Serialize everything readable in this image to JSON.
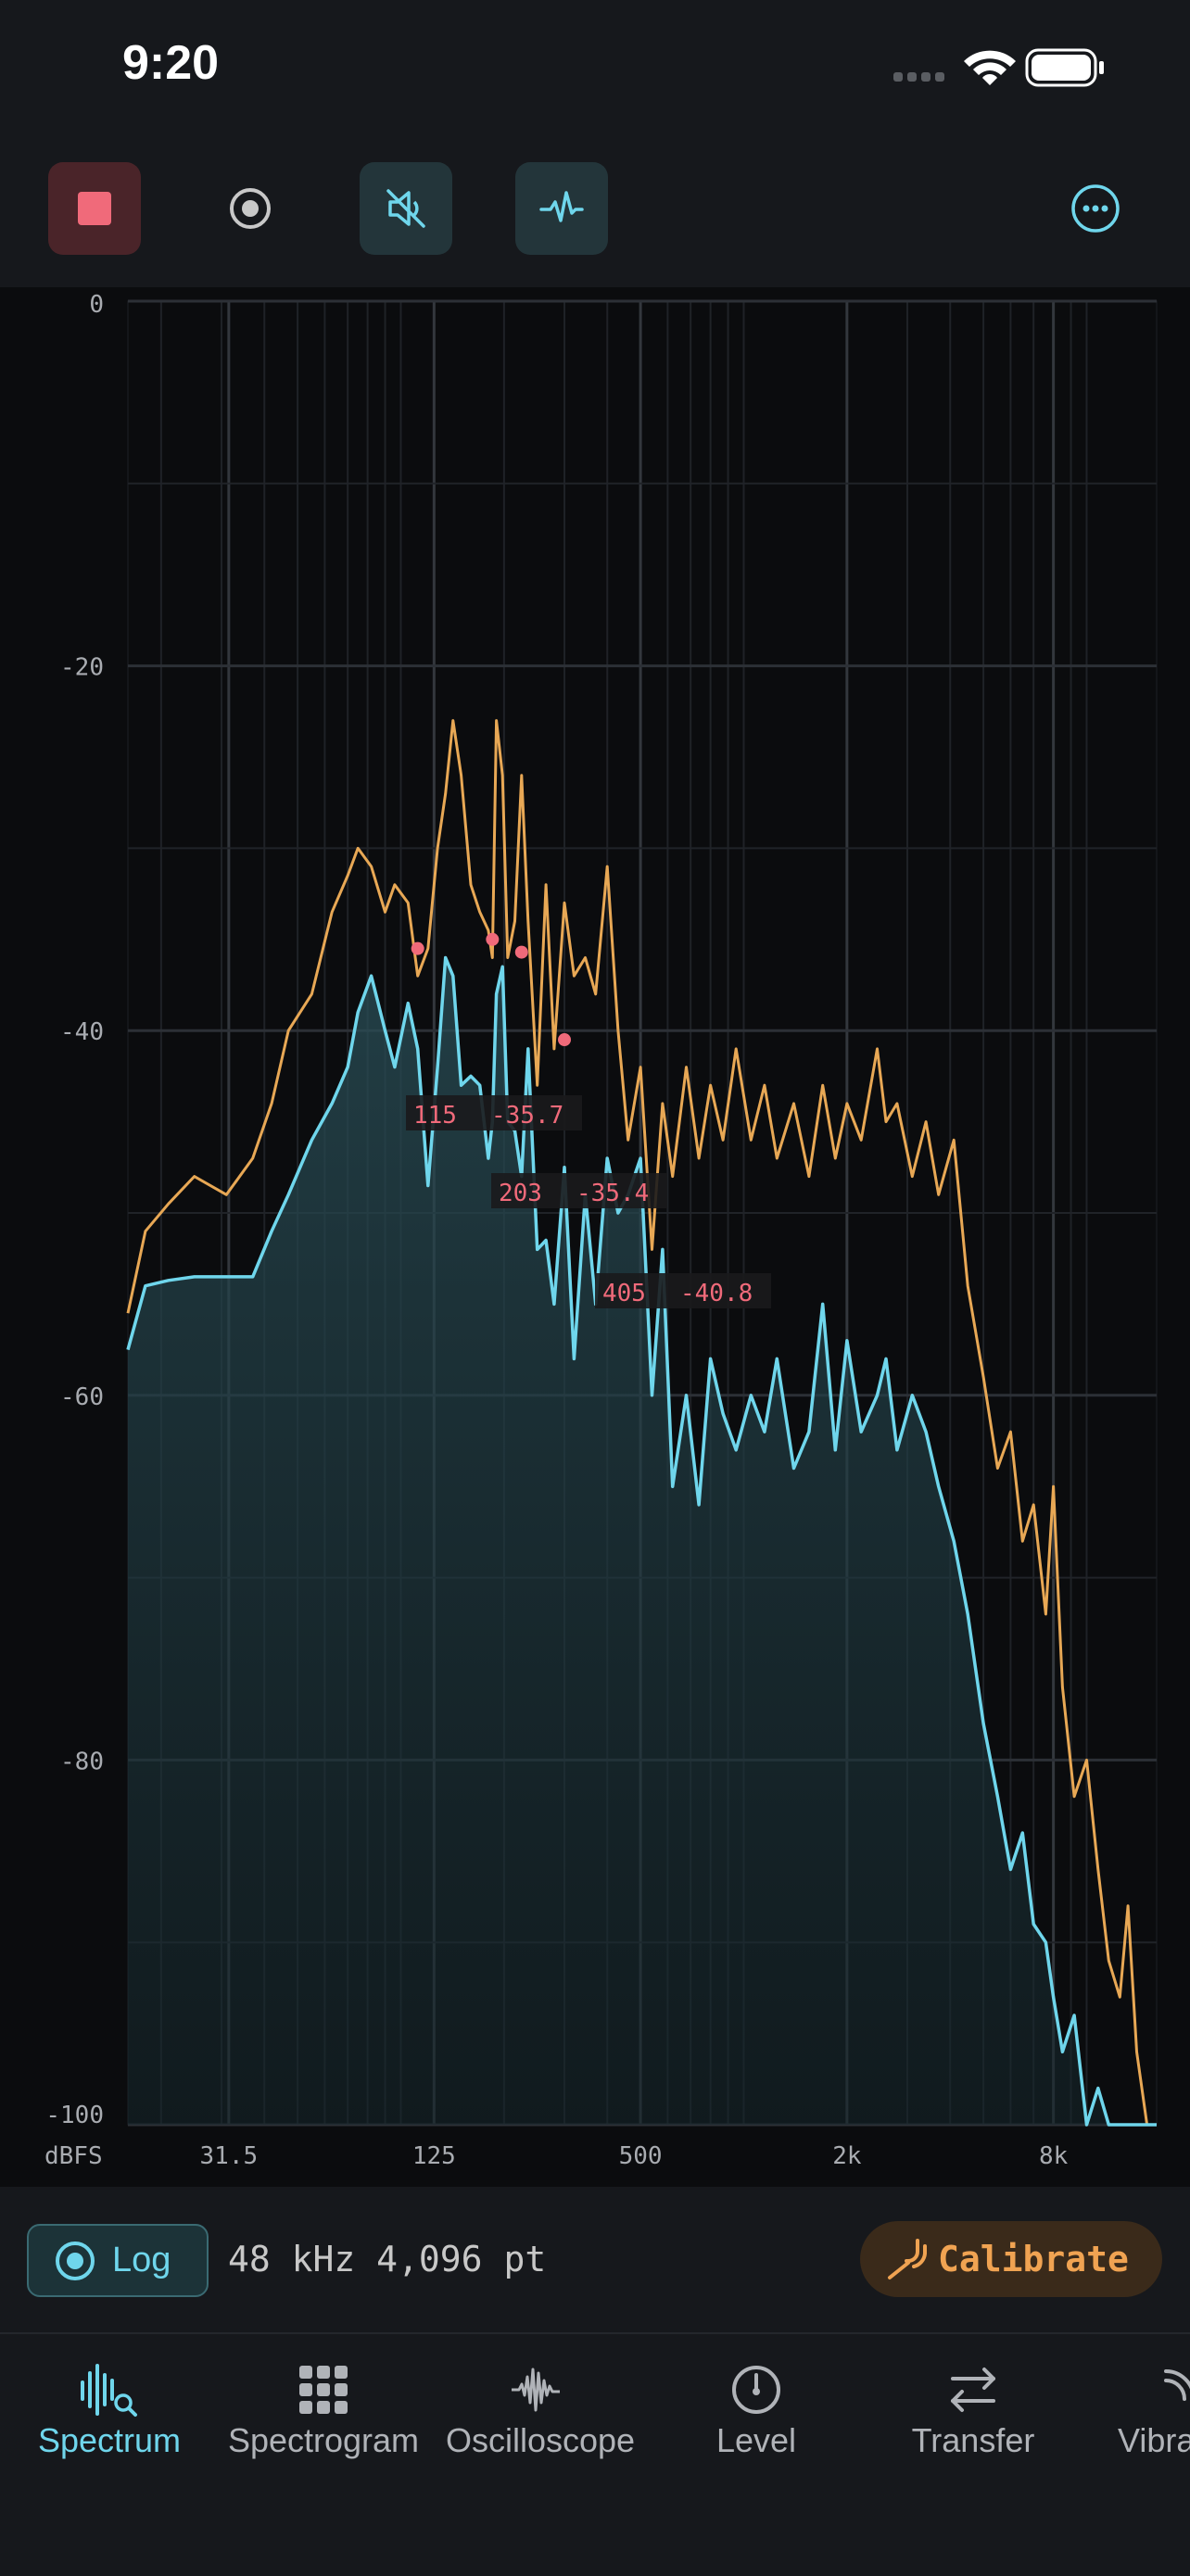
{
  "status": {
    "time": "9:20"
  },
  "toolbar": {
    "stop": "stop-button",
    "record": "record-button",
    "mute": "mute-toggle",
    "waveform": "waveform-toggle",
    "more": "more-button"
  },
  "colors": {
    "live": "#6fd6ec",
    "hold": "#e8a855",
    "peak": "#f06a7a",
    "grid": "#2a2d33"
  },
  "chart_data": {
    "type": "line",
    "x_scale": "log",
    "ylabel": "dBFS",
    "ylim": [
      -100,
      0
    ],
    "y_ticks": [
      "0",
      "-20",
      "-40",
      "-60",
      "-80",
      "-100"
    ],
    "x_ticks": [
      "31.5",
      "125",
      "500",
      "2k",
      "8k"
    ],
    "peaks": [
      {
        "freq": "115",
        "level": "-35.7"
      },
      {
        "freq": "203",
        "level": "-35.4"
      },
      {
        "freq": "405",
        "level": "-40.8"
      }
    ],
    "series": [
      {
        "values": [
          [
            16,
            -55.5
          ],
          [
            18,
            -51
          ],
          [
            21,
            -49.5
          ],
          [
            25,
            -48
          ],
          [
            31,
            -49
          ],
          [
            37,
            -47
          ],
          [
            42,
            -44
          ],
          [
            47,
            -40
          ],
          [
            55,
            -38
          ],
          [
            63,
            -33.5
          ],
          [
            70,
            -31.5
          ],
          [
            75,
            -30
          ],
          [
            82,
            -31
          ],
          [
            90,
            -33.5
          ],
          [
            96,
            -32
          ],
          [
            105,
            -33
          ],
          [
            112,
            -37
          ],
          [
            120,
            -35.5
          ],
          [
            128,
            -30
          ],
          [
            135,
            -27
          ],
          [
            142,
            -23
          ],
          [
            150,
            -26
          ],
          [
            160,
            -32
          ],
          [
            170,
            -33.5
          ],
          [
            180,
            -34.5
          ],
          [
            185,
            -36
          ],
          [
            190,
            -23
          ],
          [
            198,
            -26
          ],
          [
            205,
            -36
          ],
          [
            215,
            -34
          ],
          [
            225,
            -26
          ],
          [
            235,
            -34
          ],
          [
            250,
            -43
          ],
          [
            265,
            -32
          ],
          [
            280,
            -41
          ],
          [
            300,
            -33
          ],
          [
            320,
            -37
          ],
          [
            345,
            -36
          ],
          [
            370,
            -38
          ],
          [
            400,
            -31
          ],
          [
            430,
            -40
          ],
          [
            460,
            -46
          ],
          [
            500,
            -42
          ],
          [
            540,
            -52
          ],
          [
            580,
            -44
          ],
          [
            620,
            -48
          ],
          [
            680,
            -42
          ],
          [
            740,
            -47
          ],
          [
            800,
            -43
          ],
          [
            870,
            -46
          ],
          [
            950,
            -41
          ],
          [
            1050,
            -46
          ],
          [
            1150,
            -43
          ],
          [
            1250,
            -47
          ],
          [
            1400,
            -44
          ],
          [
            1550,
            -48
          ],
          [
            1700,
            -43
          ],
          [
            1850,
            -47
          ],
          [
            2000,
            -44
          ],
          [
            2200,
            -46
          ],
          [
            2450,
            -41
          ],
          [
            2600,
            -45
          ],
          [
            2800,
            -44
          ],
          [
            3100,
            -48
          ],
          [
            3400,
            -45
          ],
          [
            3700,
            -49
          ],
          [
            4100,
            -46
          ],
          [
            4500,
            -54
          ],
          [
            5000,
            -59
          ],
          [
            5500,
            -64
          ],
          [
            6000,
            -62
          ],
          [
            6500,
            -68
          ],
          [
            7000,
            -66
          ],
          [
            7600,
            -72
          ],
          [
            8000,
            -65
          ],
          [
            8500,
            -76
          ],
          [
            9200,
            -82
          ],
          [
            10000,
            -80
          ],
          [
            10800,
            -86
          ],
          [
            11600,
            -91
          ],
          [
            12500,
            -93
          ],
          [
            13200,
            -88
          ],
          [
            14000,
            -96
          ],
          [
            15000,
            -100
          ],
          [
            16000,
            -100
          ]
        ]
      },
      {
        "values": [
          [
            16,
            -57.5
          ],
          [
            18,
            -54
          ],
          [
            21,
            -53.7
          ],
          [
            25,
            -53.5
          ],
          [
            31,
            -53.5
          ],
          [
            37,
            -53.5
          ],
          [
            42,
            -51
          ],
          [
            47,
            -49
          ],
          [
            55,
            -46
          ],
          [
            63,
            -44
          ],
          [
            70,
            -42
          ],
          [
            75,
            -39
          ],
          [
            82,
            -37
          ],
          [
            90,
            -40
          ],
          [
            96,
            -42
          ],
          [
            105,
            -38.5
          ],
          [
            112,
            -41
          ],
          [
            120,
            -48.5
          ],
          [
            128,
            -42
          ],
          [
            135,
            -36
          ],
          [
            142,
            -37
          ],
          [
            150,
            -43
          ],
          [
            160,
            -42.5
          ],
          [
            170,
            -43
          ],
          [
            180,
            -47
          ],
          [
            185,
            -45
          ],
          [
            190,
            -38
          ],
          [
            198,
            -36.5
          ],
          [
            205,
            -45
          ],
          [
            215,
            -45.5
          ],
          [
            225,
            -48
          ],
          [
            235,
            -41
          ],
          [
            250,
            -52
          ],
          [
            265,
            -51.5
          ],
          [
            280,
            -55
          ],
          [
            300,
            -47.5
          ],
          [
            320,
            -58
          ],
          [
            345,
            -49
          ],
          [
            370,
            -55
          ],
          [
            400,
            -47
          ],
          [
            430,
            -50
          ],
          [
            460,
            -49
          ],
          [
            500,
            -47
          ],
          [
            540,
            -60
          ],
          [
            580,
            -52
          ],
          [
            620,
            -65
          ],
          [
            680,
            -60
          ],
          [
            740,
            -66
          ],
          [
            800,
            -58
          ],
          [
            870,
            -61
          ],
          [
            950,
            -63
          ],
          [
            1050,
            -60
          ],
          [
            1150,
            -62
          ],
          [
            1250,
            -58
          ],
          [
            1400,
            -64
          ],
          [
            1550,
            -62
          ],
          [
            1700,
            -55
          ],
          [
            1850,
            -63
          ],
          [
            2000,
            -57
          ],
          [
            2200,
            -62
          ],
          [
            2450,
            -60
          ],
          [
            2600,
            -58
          ],
          [
            2800,
            -63
          ],
          [
            3100,
            -60
          ],
          [
            3400,
            -62
          ],
          [
            3700,
            -65
          ],
          [
            4100,
            -68
          ],
          [
            4500,
            -72
          ],
          [
            5000,
            -78
          ],
          [
            5500,
            -82
          ],
          [
            6000,
            -86
          ],
          [
            6500,
            -84
          ],
          [
            7000,
            -89
          ],
          [
            7600,
            -90
          ],
          [
            8000,
            -93
          ],
          [
            8500,
            -96
          ],
          [
            9200,
            -94
          ],
          [
            10000,
            -100
          ],
          [
            10800,
            -98
          ],
          [
            11600,
            -100
          ],
          [
            12500,
            -100
          ],
          [
            13200,
            -100
          ],
          [
            14000,
            -100
          ],
          [
            15000,
            -100
          ],
          [
            16000,
            -100
          ]
        ]
      }
    ]
  },
  "info": {
    "log_label": "Log",
    "sample_rate": "48 kHz",
    "points": "4,096 pt",
    "calibrate_label": "Calibrate"
  },
  "tabs": [
    {
      "label": "Spectrum",
      "icon": "spectrum-icon",
      "active": true
    },
    {
      "label": "Spectrogram",
      "icon": "grid-icon",
      "active": false
    },
    {
      "label": "Oscilloscope",
      "icon": "waveform-icon",
      "active": false
    },
    {
      "label": "Level",
      "icon": "gauge-icon",
      "active": false
    },
    {
      "label": "Transfer",
      "icon": "transfer-icon",
      "active": false
    },
    {
      "label": "Vibra",
      "icon": "vibration-icon",
      "active": false
    }
  ]
}
